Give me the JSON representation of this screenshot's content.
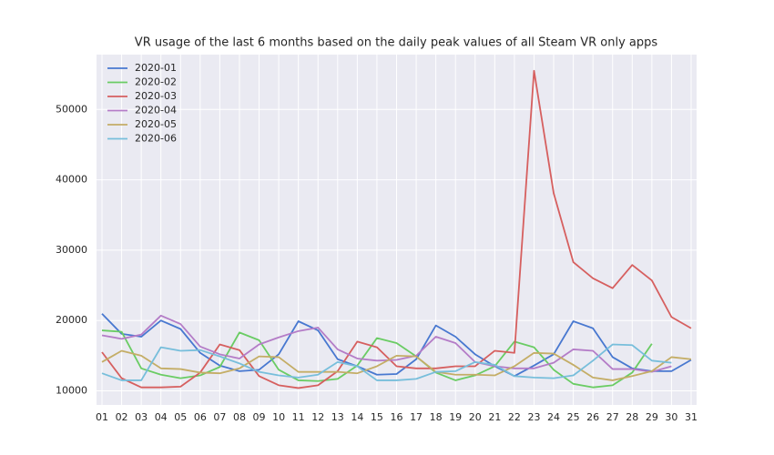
{
  "chart_data": {
    "type": "line",
    "title": "VR usage of the last 6 months based on the daily peak values of all Steam VR only apps",
    "categories": [
      "01",
      "02",
      "03",
      "04",
      "05",
      "06",
      "07",
      "08",
      "09",
      "10",
      "11",
      "12",
      "13",
      "14",
      "15",
      "16",
      "17",
      "18",
      "19",
      "20",
      "21",
      "22",
      "23",
      "24",
      "25",
      "26",
      "27",
      "28",
      "29",
      "30",
      "31"
    ],
    "series": [
      {
        "name": "2020-01",
        "color": "#4878d0",
        "values": [
          20970,
          18100,
          17700,
          20000,
          18800,
          15400,
          13600,
          12800,
          13000,
          15200,
          19900,
          18600,
          14500,
          13500,
          12300,
          12400,
          14500,
          19300,
          17700,
          15200,
          13500,
          12100,
          13600,
          15200,
          19900,
          18900,
          14800,
          13200,
          12800,
          12800,
          14400
        ]
      },
      {
        "name": "2020-02",
        "color": "#6acc64",
        "values": [
          18600,
          18400,
          13200,
          12300,
          11800,
          12200,
          13400,
          18300,
          17200,
          13000,
          11500,
          11400,
          11700,
          13600,
          17500,
          16800,
          14900,
          12600,
          11500,
          12200,
          13500,
          17000,
          16200,
          13000,
          11000,
          10500,
          10800,
          12600,
          16700,
          null,
          null
        ]
      },
      {
        "name": "2020-03",
        "color": "#d65f5f",
        "values": [
          15500,
          11800,
          10500,
          10500,
          10600,
          12600,
          16600,
          15800,
          12100,
          10800,
          10400,
          10800,
          12800,
          17000,
          16200,
          13500,
          13200,
          13200,
          13500,
          13500,
          15700,
          15400,
          55500,
          38100,
          28300,
          26000,
          24600,
          27900,
          25700,
          20500,
          18900
        ]
      },
      {
        "name": "2020-04",
        "color": "#b47cc7",
        "values": [
          17900,
          17400,
          18000,
          20700,
          19500,
          16300,
          15200,
          14600,
          16600,
          17600,
          18500,
          19000,
          15900,
          14600,
          14300,
          14400,
          15000,
          17700,
          16800,
          14100,
          13500,
          13200,
          13200,
          14000,
          15900,
          15700,
          13100,
          13100,
          12700,
          13500,
          null
        ]
      },
      {
        "name": "2020-05",
        "color": "#c4ad66",
        "values": [
          14100,
          15700,
          15000,
          13200,
          13100,
          12600,
          12500,
          13200,
          14900,
          14800,
          12700,
          12700,
          12700,
          12500,
          13500,
          15000,
          14900,
          12700,
          12300,
          12300,
          12200,
          13500,
          15400,
          15300,
          13700,
          11900,
          11500,
          12100,
          12800,
          14800,
          14500
        ]
      },
      {
        "name": "2020-06",
        "color": "#77bedb",
        "values": [
          12500,
          11500,
          11500,
          16200,
          15700,
          15800,
          14900,
          13900,
          12700,
          12200,
          11900,
          12300,
          14100,
          13500,
          11500,
          11500,
          11700,
          12700,
          12800,
          14100,
          13700,
          12100,
          11900,
          11800,
          12200,
          14300,
          16600,
          16500,
          14300,
          14000,
          null
        ]
      }
    ],
    "ylim": [
      8000,
      57800
    ],
    "yticks": [
      10000,
      20000,
      30000,
      40000,
      50000
    ],
    "grid": true,
    "legend": "upper-left"
  }
}
